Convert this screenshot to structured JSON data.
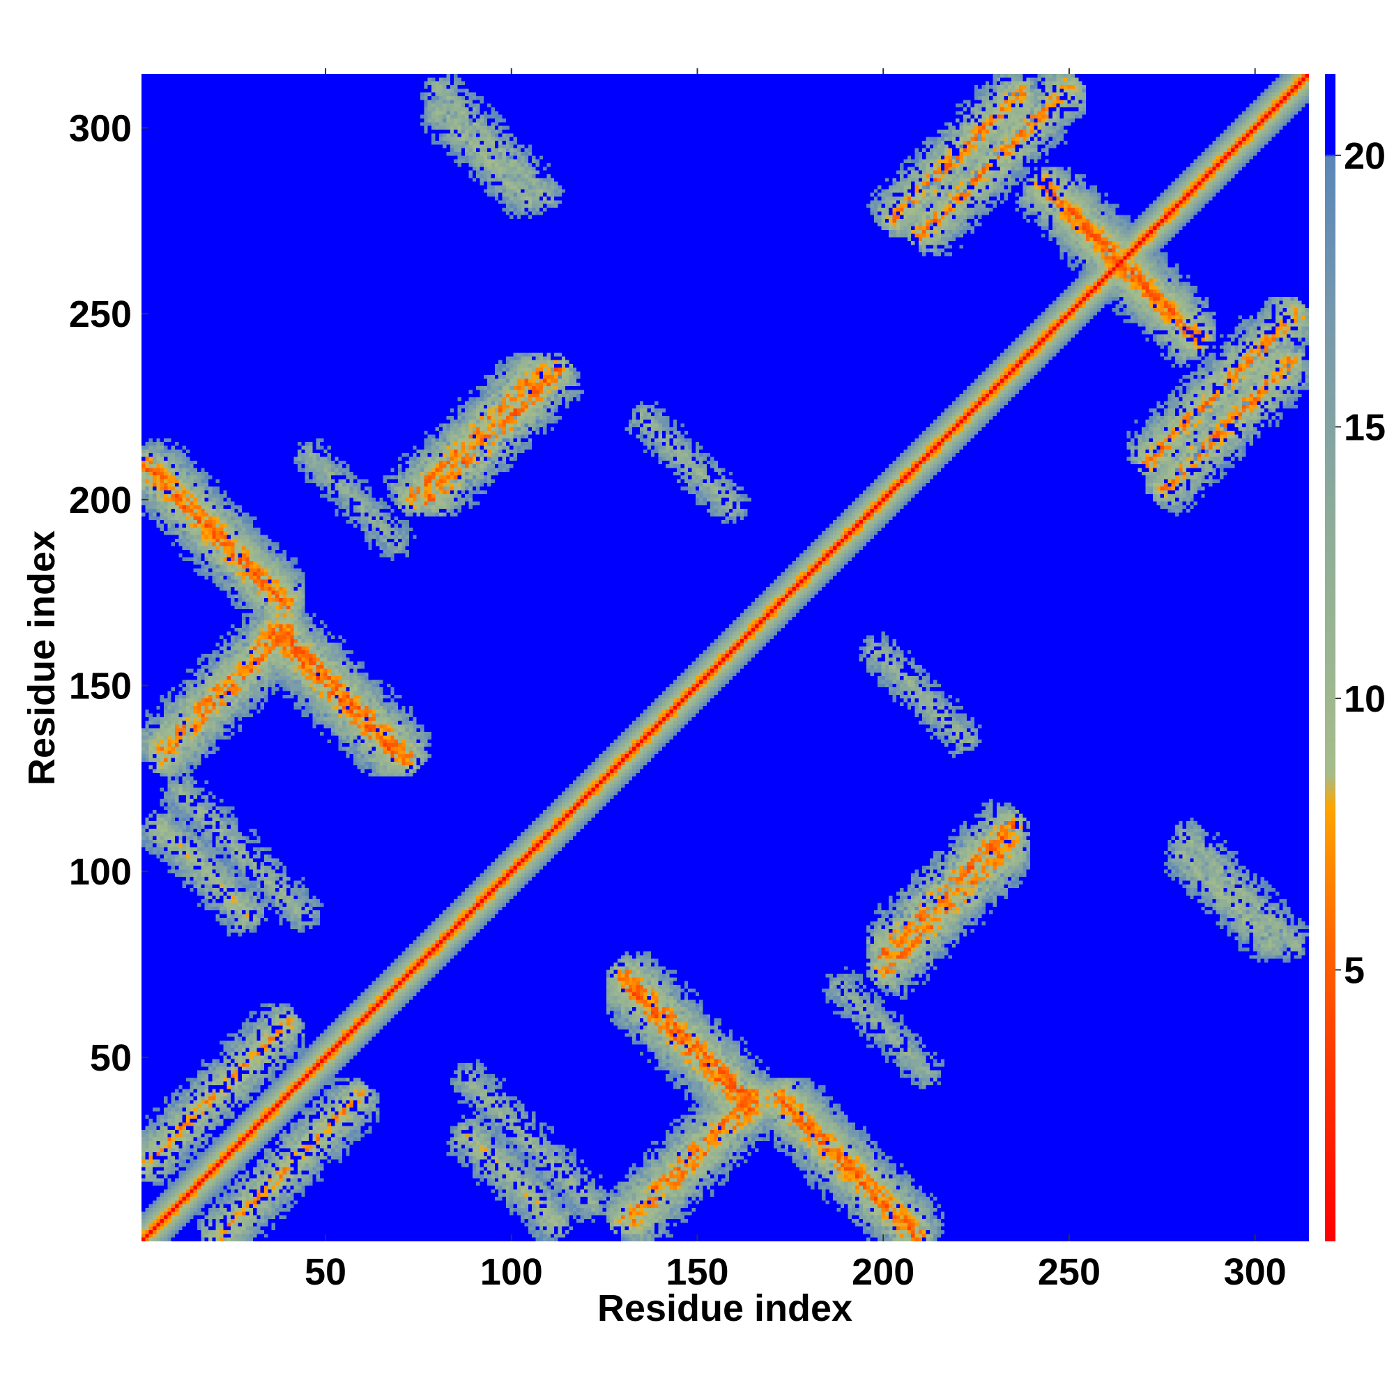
{
  "chart_data": {
    "type": "heatmap",
    "title": "",
    "xlabel": "Residue index",
    "ylabel": "Residue index",
    "n_residues": 314,
    "xlim": [
      1,
      314
    ],
    "ylim": [
      1,
      314
    ],
    "xticks": [
      50,
      100,
      150,
      200,
      250,
      300
    ],
    "yticks": [
      50,
      100,
      150,
      200,
      250,
      300
    ],
    "colorbar": {
      "range": [
        0,
        21.5
      ],
      "ticks": [
        5,
        10,
        15,
        20
      ],
      "saturation_color": "#0000ff",
      "stops": [
        {
          "value": 0,
          "color": "#ff0000"
        },
        {
          "value": 3,
          "color": "#ff3300"
        },
        {
          "value": 5.5,
          "color": "#ff6600"
        },
        {
          "value": 8,
          "color": "#ffa500"
        },
        {
          "value": 8.6,
          "color": "#a6bd8a"
        },
        {
          "value": 13,
          "color": "#8fae98"
        },
        {
          "value": 17,
          "color": "#7699ae"
        },
        {
          "value": 20,
          "color": "#5a86b9"
        },
        {
          "value": 20.01,
          "color": "#0000ff"
        }
      ]
    },
    "diagonal_band_halfwidth": 8,
    "contact_regions": [
      {
        "x": [
          1,
          40
        ],
        "y": [
          160,
          220
        ],
        "orientation": "anti",
        "min": 3
      },
      {
        "x": [
          1,
          45
        ],
        "y": [
          130,
          165
        ],
        "orientation": "parallel",
        "min": 4
      },
      {
        "x": [
          35,
          70
        ],
        "y": [
          130,
          165
        ],
        "orientation": "anti",
        "min": 3
      },
      {
        "x": [
          75,
          115
        ],
        "y": [
          200,
          235
        ],
        "orientation": "parallel",
        "min": 3
      },
      {
        "x": [
          80,
          110
        ],
        "y": [
          280,
          312
        ],
        "orientation": "anti",
        "min": 9
      },
      {
        "x": [
          210,
          250
        ],
        "y": [
          270,
          312
        ],
        "orientation": "parallel",
        "min": 4
      },
      {
        "x": [
          250,
          285
        ],
        "y": [
          230,
          290
        ],
        "orientation": "anti",
        "min": 3
      },
      {
        "x": [
          275,
          310
        ],
        "y": [
          200,
          240
        ],
        "orientation": "parallel",
        "min": 4
      },
      {
        "x": [
          1,
          40
        ],
        "y": [
          20,
          60
        ],
        "orientation": "parallel",
        "min": 5
      },
      {
        "x": [
          5,
          30
        ],
        "y": [
          80,
          120
        ],
        "orientation": "anti",
        "min": 7
      },
      {
        "x": [
          130,
          165
        ],
        "y": [
          35,
          75
        ],
        "orientation": "anti",
        "min": 3
      },
      {
        "x": [
          130,
          170
        ],
        "y": [
          5,
          40
        ],
        "orientation": "parallel",
        "min": 4
      },
      {
        "x": [
          170,
          210
        ],
        "y": [
          5,
          40
        ],
        "orientation": "anti",
        "min": 4
      },
      {
        "x": [
          200,
          235
        ],
        "y": [
          70,
          110
        ],
        "orientation": "parallel",
        "min": 4
      },
      {
        "x": [
          275,
          310
        ],
        "y": [
          80,
          105
        ],
        "orientation": "anti",
        "min": 8
      },
      {
        "x": [
          195,
          225
        ],
        "y": [
          135,
          160
        ],
        "orientation": "anti",
        "min": 9
      },
      {
        "x": [
          85,
          125
        ],
        "y": [
          10,
          45
        ],
        "orientation": "anti",
        "min": 9
      },
      {
        "x": [
          175,
          225
        ],
        "y": [
          45,
          70
        ],
        "orientation": "anti",
        "min": 10
      }
    ]
  }
}
